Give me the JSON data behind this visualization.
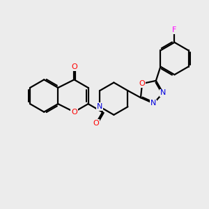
{
  "bg_color": "#ececec",
  "bond_color": "#000000",
  "oxygen_color": "#ff0000",
  "nitrogen_color": "#0000dd",
  "fluorine_color": "#ff00ff",
  "bond_lw": 1.6,
  "figsize": [
    3.0,
    3.0
  ],
  "dpi": 100,
  "xlim": [
    0,
    10
  ],
  "ylim": [
    0,
    10
  ]
}
